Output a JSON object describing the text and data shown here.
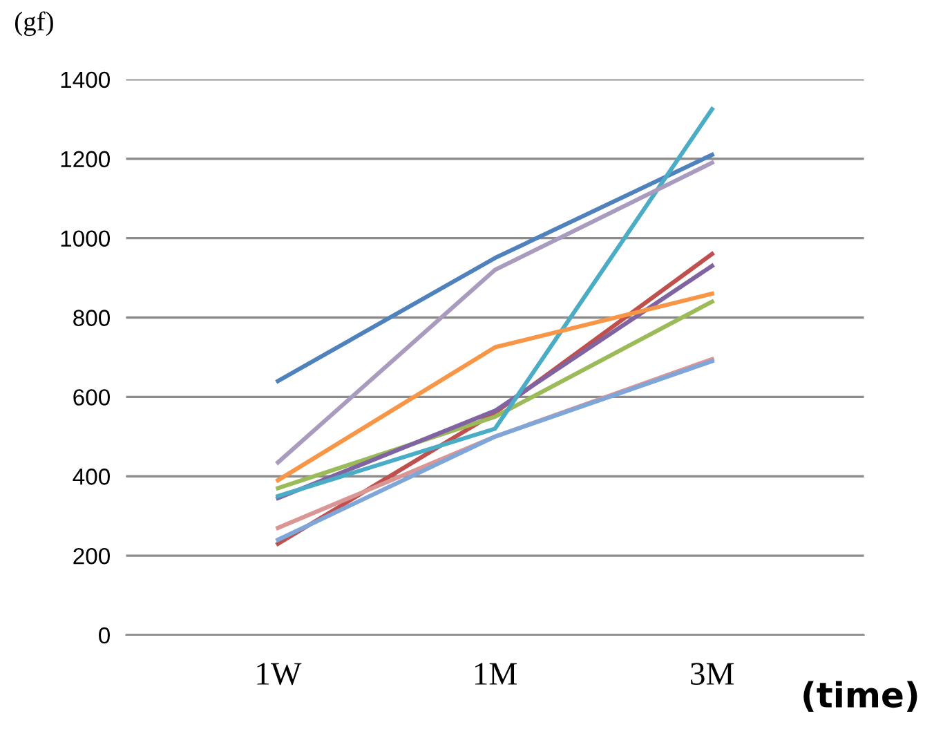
{
  "chart_data": {
    "type": "line",
    "ylabel": "(gf)",
    "xlabel": "(time)",
    "categories": [
      "1W",
      "1M",
      "3M"
    ],
    "series": [
      {
        "color": "#4f81bd",
        "values": [
          640,
          950,
          1210
        ]
      },
      {
        "color": "#c0504d",
        "values": [
          230,
          560,
          960
        ]
      },
      {
        "color": "#9bbb59",
        "values": [
          370,
          550,
          840
        ]
      },
      {
        "color": "#8064a2",
        "values": [
          345,
          565,
          930
        ]
      },
      {
        "color": "#4bacc6",
        "values": [
          350,
          520,
          1325
        ]
      },
      {
        "color": "#f79646",
        "values": [
          390,
          725,
          860
        ]
      },
      {
        "color": "#a99bbd",
        "values": [
          435,
          920,
          1190
        ]
      },
      {
        "color": "#d99694",
        "values": [
          270,
          500,
          695
        ]
      },
      {
        "color": "#7ea6d8",
        "values": [
          240,
          500,
          690
        ]
      }
    ],
    "ylim": [
      0,
      1400
    ],
    "yticks": [
      0,
      200,
      400,
      600,
      800,
      1000,
      1200,
      1400
    ],
    "grid": "y",
    "legend": false
  }
}
